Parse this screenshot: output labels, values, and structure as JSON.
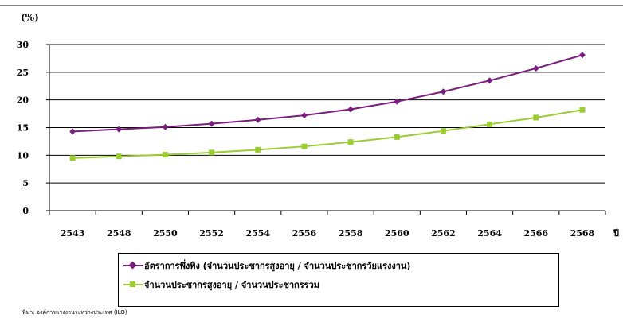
{
  "chart_data": {
    "type": "line",
    "ylabel": "(%)",
    "xlabel_suffix": "ปี",
    "categories": [
      "2543",
      "2548",
      "2550",
      "2552",
      "2554",
      "2556",
      "2558",
      "2560",
      "2562",
      "2564",
      "2566",
      "2568"
    ],
    "ylim": [
      0,
      30
    ],
    "yticks": [
      0,
      5,
      10,
      15,
      20,
      25,
      30
    ],
    "grid": true,
    "legend_position": "bottom",
    "series": [
      {
        "name": "อัตราการพึ่งพิง (จำนวนประชากรสูงอายุ / จำนวนประชากรวัยแรงงาน)",
        "color": "#7b1d7e",
        "marker": "diamond",
        "values": [
          14.3,
          14.7,
          15.1,
          15.7,
          16.4,
          17.2,
          18.3,
          19.7,
          21.5,
          23.5,
          25.7,
          28.1
        ]
      },
      {
        "name": "จำนวนประชากรสูงอายุ / จำนวนประชากรรวม",
        "color": "#9acd32",
        "marker": "square",
        "values": [
          9.5,
          9.8,
          10.1,
          10.5,
          11.0,
          11.6,
          12.4,
          13.3,
          14.4,
          15.6,
          16.8,
          18.2
        ]
      }
    ]
  },
  "source_note": "ที่มา: องค์การแรงงานระหว่างประเทศ (ILO)"
}
